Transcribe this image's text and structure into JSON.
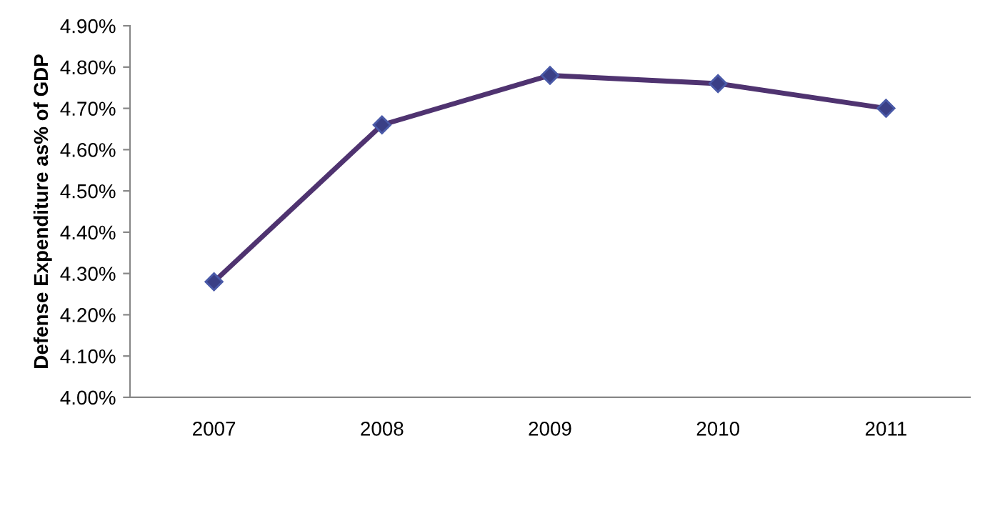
{
  "chart_data": {
    "type": "line",
    "ylabel": "Defense Expenditure as% of GDP",
    "categories": [
      "2007",
      "2008",
      "2009",
      "2010",
      "2011"
    ],
    "series": [
      {
        "color": "#4f3370",
        "values": [
          4.28,
          4.66,
          4.78,
          4.76,
          4.7
        ]
      }
    ],
    "ylim": [
      4.0,
      4.9
    ],
    "yticks": [
      {
        "value": 4.0,
        "label": "4.00%"
      },
      {
        "value": 4.1,
        "label": "4.10%"
      },
      {
        "value": 4.2,
        "label": "4.20%"
      },
      {
        "value": 4.3,
        "label": "4.30%"
      },
      {
        "value": 4.4,
        "label": "4.40%"
      },
      {
        "value": 4.5,
        "label": "4.50%"
      },
      {
        "value": 4.6,
        "label": "4.60%"
      },
      {
        "value": 4.7,
        "label": "4.70%"
      },
      {
        "value": 4.8,
        "label": "4.80%"
      },
      {
        "value": 4.9,
        "label": "4.90%"
      }
    ],
    "marker": "diamond",
    "line_style": "solid",
    "grid": false
  }
}
